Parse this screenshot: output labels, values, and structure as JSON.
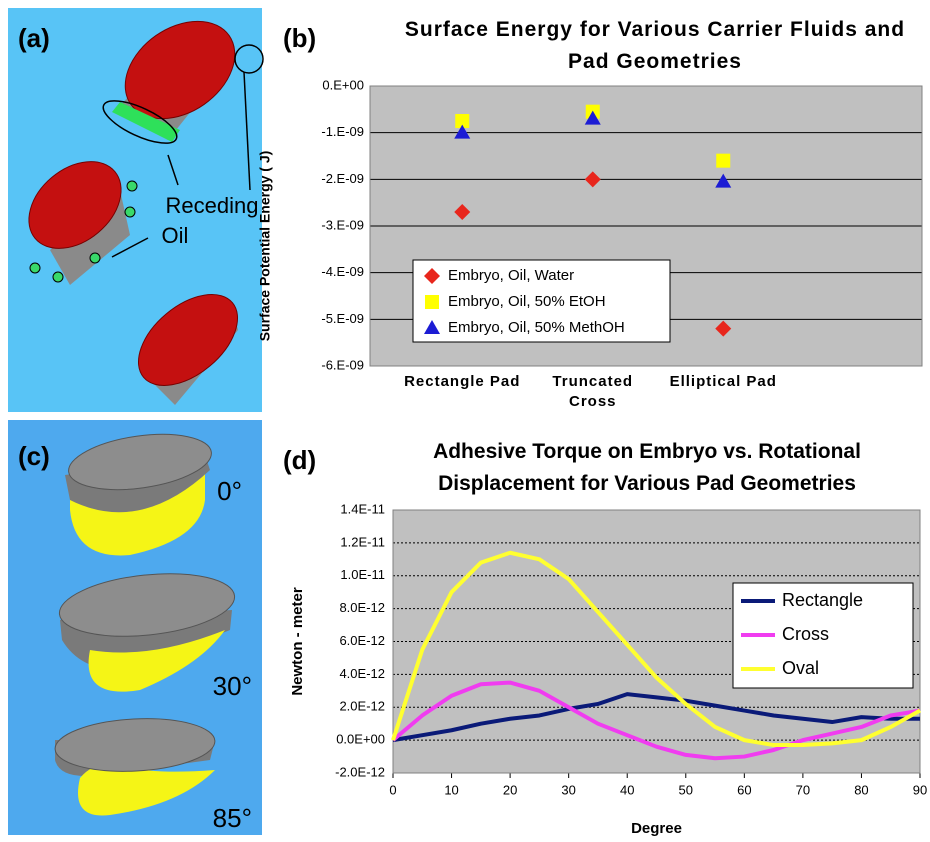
{
  "panels": {
    "a": {
      "label": "(a)",
      "annotation": [
        "Receding",
        "Oil"
      ]
    },
    "b": {
      "label": "(b)"
    },
    "c": {
      "label": "(c)",
      "angles": [
        "0°",
        "30°",
        "85°"
      ]
    },
    "d": {
      "label": "(d)"
    }
  },
  "chart_data": [
    {
      "type": "scatter",
      "title": "Surface Energy for Various Carrier Fluids and Pad Geometries",
      "ylabel": "Surface Potential Energy ( J)",
      "categories": [
        "Rectangle Pad",
        "Truncated Cross",
        "Elliptical Pad"
      ],
      "series": [
        {
          "name": "Embryo, Oil, Water",
          "color": "#e8261c",
          "marker": "diamond",
          "values": [
            -2.7e-09,
            -2e-09,
            -5.2e-09
          ]
        },
        {
          "name": "Embryo, Oil, 50% EtOH",
          "color": "#ffff00",
          "marker": "square",
          "values": [
            -7.5e-10,
            -5.5e-10,
            -1.6e-09
          ]
        },
        {
          "name": "Embryo, Oil, 50% MethOH",
          "color": "#1c1cd4",
          "marker": "triangle",
          "values": [
            -1e-09,
            -7e-10,
            -2.05e-09
          ]
        }
      ],
      "ylim": [
        -6e-09,
        0
      ],
      "yticks": [
        {
          "value": 0,
          "label": "0.E+00"
        },
        {
          "value": -1e-09,
          "label": "-1.E-09"
        },
        {
          "value": -2e-09,
          "label": "-2.E-09"
        },
        {
          "value": -3e-09,
          "label": "-3.E-09"
        },
        {
          "value": -4e-09,
          "label": "-4.E-09"
        },
        {
          "value": -5e-09,
          "label": "-5.E-09"
        },
        {
          "value": -6e-09,
          "label": "-6.E-09"
        }
      ],
      "grid": true,
      "legend": "lower left"
    },
    {
      "type": "line",
      "title": "Adhesive Torque on Embryo vs. Rotational Displacement for Various Pad Geometries",
      "xlabel": "Degree",
      "ylabel": "Newton - meter",
      "x": [
        0,
        5,
        10,
        15,
        20,
        25,
        30,
        35,
        40,
        45,
        50,
        55,
        60,
        65,
        70,
        75,
        80,
        85,
        90
      ],
      "series": [
        {
          "name": "Rectangle",
          "color": "#0a1a78",
          "values": [
            0,
            3e-13,
            6e-13,
            1e-12,
            1.3e-12,
            1.5e-12,
            1.9e-12,
            2.2e-12,
            2.8e-12,
            2.6e-12,
            2.4e-12,
            2.1e-12,
            1.8e-12,
            1.5e-12,
            1.3e-12,
            1.1e-12,
            1.4e-12,
            1.3e-12,
            1.3e-12
          ]
        },
        {
          "name": "Cross",
          "color": "#f03cf0",
          "values": [
            0,
            1.5e-12,
            2.7e-12,
            3.4e-12,
            3.5e-12,
            3e-12,
            2e-12,
            1e-12,
            3e-13,
            -4e-13,
            -9e-13,
            -1.1e-12,
            -1e-12,
            -6e-13,
            0,
            4e-13,
            8e-13,
            1.5e-12,
            1.8e-12
          ]
        },
        {
          "name": "Oval",
          "color": "#ffff30",
          "values": [
            0,
            5.5e-12,
            9e-12,
            1.08e-11,
            1.14e-11,
            1.1e-11,
            9.8e-12,
            7.8e-12,
            5.8e-12,
            3.8e-12,
            2.2e-12,
            8e-13,
            0,
            -3e-13,
            -3e-13,
            -2e-13,
            0,
            8e-13,
            1.8e-12
          ]
        }
      ],
      "xlim": [
        0,
        90
      ],
      "xticks": [
        0,
        10,
        20,
        30,
        40,
        50,
        60,
        70,
        80,
        90
      ],
      "ylim": [
        -2e-12,
        1.4e-11
      ],
      "yticks": [
        {
          "value": -2e-12,
          "label": "-2.0E-12"
        },
        {
          "value": 0,
          "label": "0.0E+00"
        },
        {
          "value": 2e-12,
          "label": "2.0E-12"
        },
        {
          "value": 4e-12,
          "label": "4.0E-12"
        },
        {
          "value": 6e-12,
          "label": "6.0E-12"
        },
        {
          "value": 8e-12,
          "label": "8.0E-12"
        },
        {
          "value": 1e-11,
          "label": "1.0E-11"
        },
        {
          "value": 1.2e-11,
          "label": "1.2E-11"
        },
        {
          "value": 1.4e-11,
          "label": "1.4E-11"
        }
      ],
      "grid": true,
      "legend": "upper right"
    }
  ]
}
